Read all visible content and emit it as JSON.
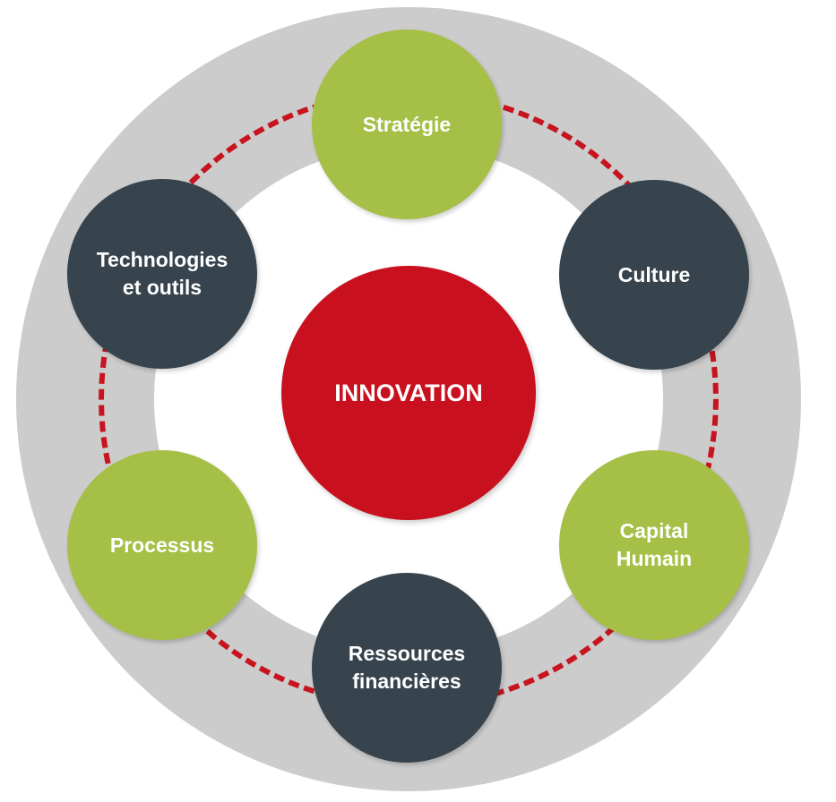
{
  "diagram": {
    "center": {
      "label": "INNOVATION"
    },
    "nodes": [
      {
        "id": "strategie",
        "label": "Stratégie",
        "color": "#a6bf46"
      },
      {
        "id": "culture",
        "label": "Culture",
        "color": "#37444d"
      },
      {
        "id": "capital",
        "label": "Capital\nHumain",
        "color": "#a6bf46"
      },
      {
        "id": "ressources",
        "label": "Ressources\nfinancières",
        "color": "#37444d"
      },
      {
        "id": "processus",
        "label": "Processus",
        "color": "#a6bf46"
      },
      {
        "id": "technos",
        "label": "Technologies\net outils",
        "color": "#37444d"
      }
    ],
    "colors": {
      "center": "#c8101e",
      "ring": "#cccccc",
      "dashed_path": "#c7141e"
    }
  }
}
